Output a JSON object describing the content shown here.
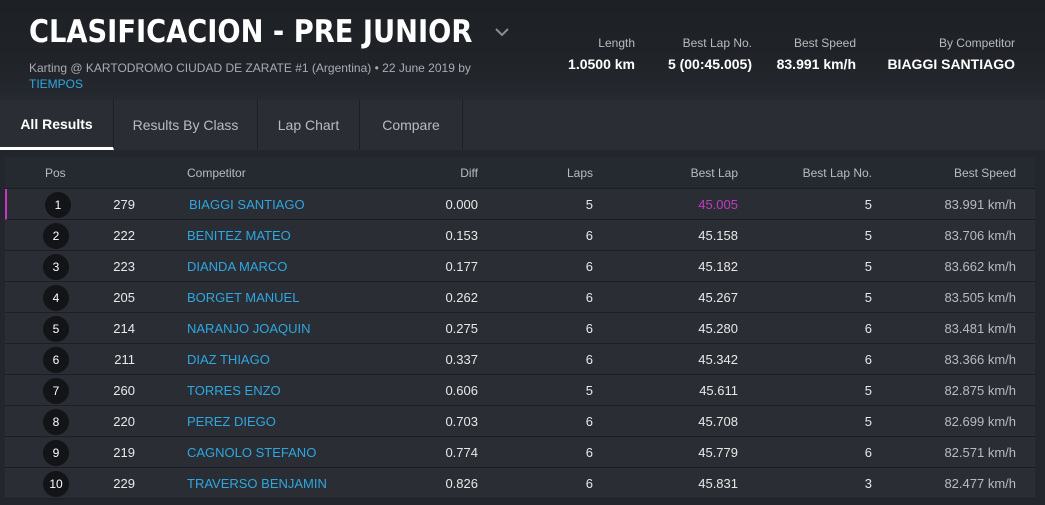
{
  "header": {
    "title": "CLASIFICACION - PRE JUNIOR",
    "subtitle_prefix": "Karting @ KARTODROMO CIUDAD DE ZARATE #1 (Argentina) • 22 June 2019 by",
    "subtitle_link": "TIEMPOS",
    "stats": [
      {
        "label": "Length",
        "value": "1.0500 km"
      },
      {
        "label": "Best Lap No.",
        "value": "5 (00:45.005)"
      },
      {
        "label": "Best Speed",
        "value": "83.991 km/h"
      },
      {
        "label": "By Competitor",
        "value": "BIAGGI SANTIAGO"
      }
    ]
  },
  "tabs": [
    {
      "label": "All Results",
      "active": true
    },
    {
      "label": "Results By Class",
      "active": false
    },
    {
      "label": "Lap Chart",
      "active": false
    },
    {
      "label": "Compare",
      "active": false
    }
  ],
  "columns": {
    "pos": "Pos",
    "competitor": "Competitor",
    "diff": "Diff",
    "laps": "Laps",
    "best_lap": "Best Lap",
    "best_lap_no": "Best Lap No.",
    "best_speed": "Best Speed"
  },
  "rows": [
    {
      "pos": "1",
      "num": "279",
      "competitor": "BIAGGI SANTIAGO",
      "diff": "0.000",
      "laps": "5",
      "best_lap": "45.005",
      "best_lap_no": "5",
      "best_speed": "83.991 km/h"
    },
    {
      "pos": "2",
      "num": "222",
      "competitor": "BENITEZ MATEO",
      "diff": "0.153",
      "laps": "6",
      "best_lap": "45.158",
      "best_lap_no": "5",
      "best_speed": "83.706 km/h"
    },
    {
      "pos": "3",
      "num": "223",
      "competitor": "DIANDA MARCO",
      "diff": "0.177",
      "laps": "6",
      "best_lap": "45.182",
      "best_lap_no": "5",
      "best_speed": "83.662 km/h"
    },
    {
      "pos": "4",
      "num": "205",
      "competitor": "BORGET MANUEL",
      "diff": "0.262",
      "laps": "6",
      "best_lap": "45.267",
      "best_lap_no": "5",
      "best_speed": "83.505 km/h"
    },
    {
      "pos": "5",
      "num": "214",
      "competitor": "NARANJO JOAQUIN",
      "diff": "0.275",
      "laps": "6",
      "best_lap": "45.280",
      "best_lap_no": "6",
      "best_speed": "83.481 km/h"
    },
    {
      "pos": "6",
      "num": "211",
      "competitor": "DIAZ THIAGO",
      "diff": "0.337",
      "laps": "6",
      "best_lap": "45.342",
      "best_lap_no": "6",
      "best_speed": "83.366 km/h"
    },
    {
      "pos": "7",
      "num": "260",
      "competitor": "TORRES ENZO",
      "diff": "0.606",
      "laps": "5",
      "best_lap": "45.611",
      "best_lap_no": "5",
      "best_speed": "82.875 km/h"
    },
    {
      "pos": "8",
      "num": "220",
      "competitor": "PEREZ DIEGO",
      "diff": "0.703",
      "laps": "6",
      "best_lap": "45.708",
      "best_lap_no": "5",
      "best_speed": "82.699 km/h"
    },
    {
      "pos": "9",
      "num": "219",
      "competitor": "CAGNOLO STEFANO",
      "diff": "0.774",
      "laps": "6",
      "best_lap": "45.779",
      "best_lap_no": "6",
      "best_speed": "82.571 km/h"
    },
    {
      "pos": "10",
      "num": "229",
      "competitor": "TRAVERSO BENJAMIN",
      "diff": "0.826",
      "laps": "6",
      "best_lap": "45.831",
      "best_lap_no": "3",
      "best_speed": "82.477 km/h"
    }
  ],
  "colors": {
    "link": "#2ea7e0",
    "best_overall": "#c538c5"
  },
  "icons": {
    "title_dropdown": "chevron-down-icon"
  }
}
